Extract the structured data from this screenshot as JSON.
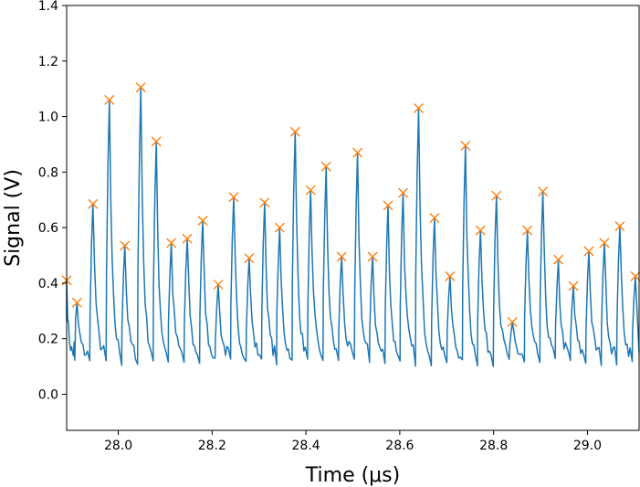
{
  "chart_data": {
    "type": "line",
    "xlabel": "Time (μs)",
    "ylabel": "Signal (V)",
    "xlim": [
      27.89,
      29.11
    ],
    "ylim": [
      -0.13,
      1.4
    ],
    "xticks": [
      {
        "value": 28.0,
        "label": "28.0"
      },
      {
        "value": 28.2,
        "label": "28.2"
      },
      {
        "value": 28.4,
        "label": "28.4"
      },
      {
        "value": 28.6,
        "label": "28.6"
      },
      {
        "value": 28.8,
        "label": "28.8"
      },
      {
        "value": 29.0,
        "label": "29.0"
      }
    ],
    "yticks": [
      {
        "value": 0.0,
        "label": "0.0"
      },
      {
        "value": 0.2,
        "label": "0.2"
      },
      {
        "value": 0.4,
        "label": "0.4"
      },
      {
        "value": 0.6,
        "label": "0.6"
      },
      {
        "value": 0.8,
        "label": "0.8"
      },
      {
        "value": 1.0,
        "label": "1.0"
      },
      {
        "value": 1.2,
        "label": "1.2"
      },
      {
        "value": 1.4,
        "label": "1.4"
      }
    ],
    "grid": false,
    "colors": {
      "signal": "#1f77b4",
      "peaks": "#ff7f0e"
    },
    "series": [
      {
        "kind": "line",
        "baseline_min": 0.1,
        "start": {
          "x": 27.89,
          "y": 0.26
        },
        "end": {
          "x": 29.11,
          "y": 0.15
        }
      },
      {
        "kind": "scatter",
        "marker": "x",
        "points": [
          {
            "x": 27.89,
            "y": 0.41
          },
          {
            "x": 27.912,
            "y": 0.33
          },
          {
            "x": 27.946,
            "y": 0.685
          },
          {
            "x": 27.981,
            "y": 1.06
          },
          {
            "x": 28.014,
            "y": 0.535
          },
          {
            "x": 28.048,
            "y": 1.105
          },
          {
            "x": 28.081,
            "y": 0.91
          },
          {
            "x": 28.113,
            "y": 0.545
          },
          {
            "x": 28.147,
            "y": 0.56
          },
          {
            "x": 28.18,
            "y": 0.625
          },
          {
            "x": 28.213,
            "y": 0.395
          },
          {
            "x": 28.246,
            "y": 0.71
          },
          {
            "x": 28.279,
            "y": 0.49
          },
          {
            "x": 28.312,
            "y": 0.69
          },
          {
            "x": 28.344,
            "y": 0.6
          },
          {
            "x": 28.377,
            "y": 0.945
          },
          {
            "x": 28.41,
            "y": 0.735
          },
          {
            "x": 28.443,
            "y": 0.82
          },
          {
            "x": 28.476,
            "y": 0.495
          },
          {
            "x": 28.51,
            "y": 0.87
          },
          {
            "x": 28.542,
            "y": 0.495
          },
          {
            "x": 28.575,
            "y": 0.68
          },
          {
            "x": 28.607,
            "y": 0.725
          },
          {
            "x": 28.64,
            "y": 1.03
          },
          {
            "x": 28.674,
            "y": 0.635
          },
          {
            "x": 28.707,
            "y": 0.425
          },
          {
            "x": 28.74,
            "y": 0.895
          },
          {
            "x": 28.772,
            "y": 0.59
          },
          {
            "x": 28.806,
            "y": 0.715
          },
          {
            "x": 28.84,
            "y": 0.26
          },
          {
            "x": 28.872,
            "y": 0.59
          },
          {
            "x": 28.905,
            "y": 0.73
          },
          {
            "x": 28.938,
            "y": 0.485
          },
          {
            "x": 28.97,
            "y": 0.39
          },
          {
            "x": 29.003,
            "y": 0.515
          },
          {
            "x": 29.036,
            "y": 0.545
          },
          {
            "x": 29.069,
            "y": 0.605
          },
          {
            "x": 29.102,
            "y": 0.425
          }
        ]
      }
    ]
  }
}
